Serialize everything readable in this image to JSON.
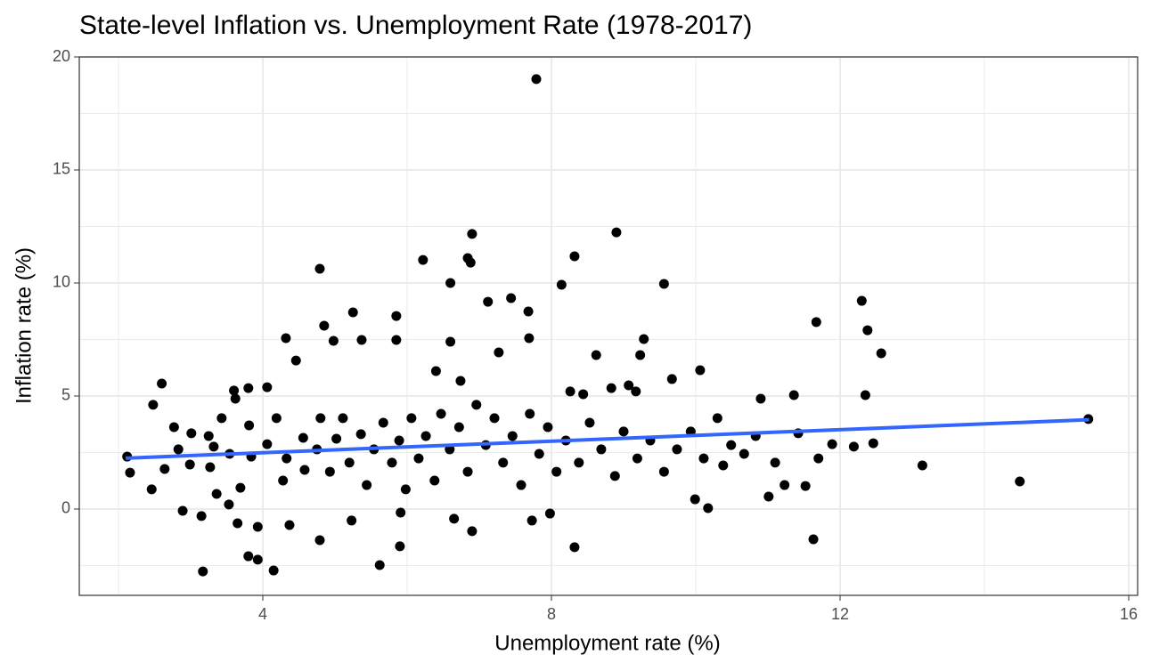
{
  "chart_data": {
    "type": "scatter",
    "title": "State-level Inflation vs. Unemployment Rate (1978-2017)",
    "x_label": "Unemployment rate (%)",
    "y_label": "Inflation rate (%)",
    "xlim": [
      1.457,
      16.123
    ],
    "ylim": [
      -3.82,
      20.0
    ],
    "xticks": [
      4,
      8,
      12,
      16
    ],
    "yticks": [
      0,
      5,
      10,
      15,
      20
    ],
    "x_minor_ticks": [
      2,
      6,
      10,
      14
    ],
    "y_minor_ticks": [
      -2.5,
      2.5,
      7.5,
      12.5,
      17.5
    ],
    "grid": true,
    "series": [
      {
        "color": "#000000",
        "x": [
          7.79,
          8.9,
          6.9,
          6.22,
          6.84,
          6.88,
          8.32,
          4.79,
          6.6,
          9.56,
          8.14,
          12.3,
          12.38,
          12.57,
          11.67,
          12.35,
          12.46,
          13.14,
          14.49,
          15.44,
          11.63,
          11.7,
          11.52,
          11.01,
          3.17,
          4.15,
          5.62,
          8.32,
          5.9,
          4.79,
          3.8,
          3.93,
          2.12,
          2.6,
          2.48,
          10.06,
          10.9,
          11.36,
          11.89,
          12.19,
          10.38,
          10.17,
          9.99,
          9.23,
          9.67,
          9.28,
          7.68,
          7.44,
          7.12,
          6.6,
          5.85,
          5.25,
          4.85,
          4.32,
          5.85,
          5.37,
          4.98,
          4.46,
          4.06,
          3.62,
          3.6,
          3.8,
          6.74,
          6.4,
          7.27,
          7.69,
          8.62,
          8.26,
          8.83,
          9.07,
          9.17,
          8.44,
          3.15,
          2.89,
          3.65,
          3.93,
          4.37,
          5.23,
          5.91,
          6.65,
          6.9,
          7.73,
          7.98,
          2.16,
          2.46,
          2.64,
          2.99,
          3.27,
          3.36,
          3.53,
          3.69,
          3.54,
          3.01,
          2.77,
          2.83,
          3.25,
          3.32,
          3.43,
          3.81,
          3.84,
          4.06,
          4.19,
          4.28,
          4.33,
          4.56,
          4.58,
          4.75,
          4.8,
          4.93,
          5.02,
          5.11,
          5.2,
          5.36,
          5.44,
          5.54,
          5.67,
          5.79,
          5.89,
          5.98,
          6.06,
          6.16,
          6.26,
          6.38,
          6.47,
          6.59,
          6.72,
          6.84,
          6.96,
          7.09,
          7.21,
          7.33,
          7.46,
          7.58,
          7.7,
          7.83,
          7.95,
          8.07,
          8.2,
          8.38,
          8.53,
          8.69,
          8.88,
          9.0,
          9.19,
          9.37,
          9.56,
          9.74,
          9.93,
          10.11,
          10.3,
          10.49,
          10.67,
          10.83,
          11.1,
          11.42,
          11.23
        ],
        "values": [
          19.02,
          12.24,
          12.17,
          11.02,
          11.1,
          10.9,
          11.18,
          10.63,
          10.0,
          9.96,
          9.92,
          9.21,
          7.91,
          6.89,
          8.27,
          5.04,
          2.91,
          1.93,
          1.22,
          3.98,
          -1.34,
          2.24,
          1.02,
          0.55,
          -2.76,
          -2.72,
          -2.48,
          -1.69,
          -1.65,
          -1.38,
          -2.09,
          -2.24,
          2.32,
          5.55,
          4.61,
          6.14,
          4.88,
          5.04,
          2.87,
          2.76,
          1.93,
          0.04,
          0.43,
          6.81,
          5.75,
          7.52,
          8.74,
          9.33,
          9.17,
          7.4,
          8.54,
          8.7,
          8.11,
          7.56,
          7.48,
          7.48,
          7.44,
          6.57,
          5.39,
          4.88,
          5.24,
          5.35,
          5.67,
          6.1,
          6.93,
          7.56,
          6.81,
          5.2,
          5.35,
          5.47,
          5.2,
          5.08,
          -0.31,
          -0.08,
          -0.63,
          -0.79,
          -0.71,
          -0.51,
          -0.16,
          -0.43,
          -0.98,
          -0.51,
          -0.2,
          1.61,
          0.87,
          1.77,
          1.97,
          1.85,
          0.67,
          0.2,
          0.94,
          2.44,
          3.35,
          3.62,
          2.64,
          3.23,
          2.76,
          4.02,
          3.7,
          2.32,
          2.87,
          4.02,
          1.26,
          2.24,
          3.15,
          1.73,
          2.64,
          4.02,
          1.65,
          3.11,
          4.02,
          2.05,
          3.31,
          1.06,
          2.64,
          3.82,
          2.05,
          3.03,
          0.87,
          4.02,
          2.24,
          3.23,
          1.26,
          4.21,
          2.64,
          3.62,
          1.65,
          4.61,
          2.83,
          4.02,
          2.05,
          3.23,
          1.06,
          4.21,
          2.44,
          3.62,
          1.65,
          3.03,
          2.05,
          3.82,
          2.64,
          1.46,
          3.43,
          2.24,
          3.03,
          1.65,
          2.64,
          3.43,
          2.24,
          4.02,
          2.83,
          2.44,
          3.23,
          2.05,
          3.35,
          1.06
        ]
      }
    ],
    "trend_line": {
      "x": [
        2.1,
        15.45
      ],
      "y": [
        2.25,
        3.95
      ],
      "color": "#3366FF"
    }
  }
}
